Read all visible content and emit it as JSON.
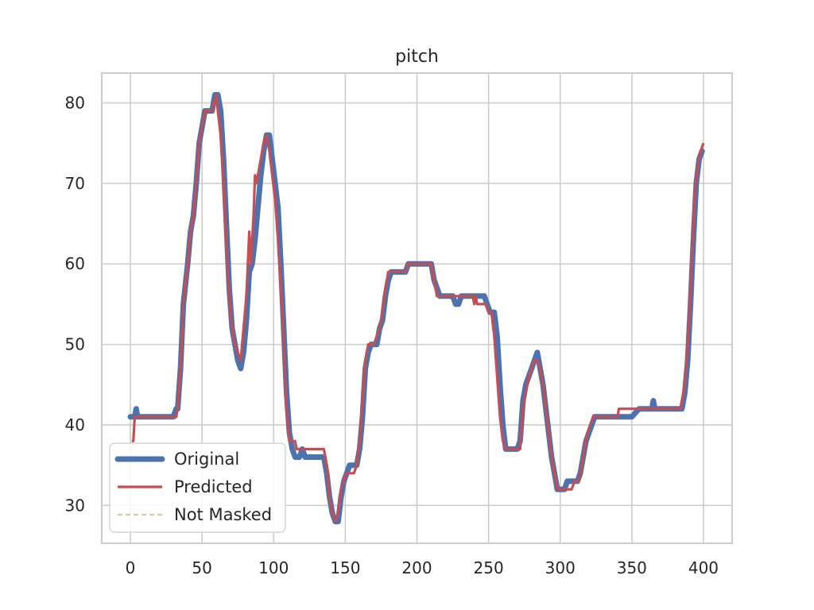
{
  "chart_data": {
    "type": "line",
    "title": "pitch",
    "xlabel": "",
    "ylabel": "",
    "xlim": [
      -20,
      420
    ],
    "ylim": [
      25.3,
      83.7
    ],
    "x_ticks": [
      0,
      50,
      100,
      150,
      200,
      250,
      300,
      350,
      400
    ],
    "y_ticks": [
      30,
      40,
      50,
      60,
      70,
      80
    ],
    "grid": true,
    "legend_position": "lower-left",
    "series": [
      {
        "name": "Original",
        "color": "#4c72b0",
        "style": "solid-thick",
        "points": [
          [
            0,
            41
          ],
          [
            3,
            41
          ],
          [
            4,
            42
          ],
          [
            5,
            41
          ],
          [
            30,
            41
          ],
          [
            32,
            42
          ],
          [
            33,
            42
          ],
          [
            35,
            47
          ],
          [
            37,
            55
          ],
          [
            40,
            60
          ],
          [
            42,
            64
          ],
          [
            44,
            66
          ],
          [
            46,
            70
          ],
          [
            48,
            75
          ],
          [
            50,
            77
          ],
          [
            52,
            79
          ],
          [
            55,
            79
          ],
          [
            57,
            79
          ],
          [
            59,
            81
          ],
          [
            61,
            81
          ],
          [
            63,
            79
          ],
          [
            65,
            73
          ],
          [
            67,
            65
          ],
          [
            69,
            57
          ],
          [
            71,
            52
          ],
          [
            73,
            50
          ],
          [
            75,
            48
          ],
          [
            77,
            47
          ],
          [
            79,
            49
          ],
          [
            81,
            53
          ],
          [
            83,
            59
          ],
          [
            85,
            60
          ],
          [
            87,
            63
          ],
          [
            89,
            67
          ],
          [
            91,
            71
          ],
          [
            93,
            74
          ],
          [
            95,
            76
          ],
          [
            97,
            76
          ],
          [
            99,
            73
          ],
          [
            101,
            70
          ],
          [
            103,
            67
          ],
          [
            105,
            60
          ],
          [
            107,
            52
          ],
          [
            109,
            44
          ],
          [
            111,
            39
          ],
          [
            113,
            37
          ],
          [
            115,
            36
          ],
          [
            118,
            36
          ],
          [
            120,
            37
          ],
          [
            122,
            36
          ],
          [
            135,
            36
          ],
          [
            137,
            34
          ],
          [
            139,
            31
          ],
          [
            141,
            29
          ],
          [
            143,
            28
          ],
          [
            145,
            28
          ],
          [
            147,
            31
          ],
          [
            149,
            33
          ],
          [
            151,
            34
          ],
          [
            153,
            35
          ],
          [
            158,
            35
          ],
          [
            160,
            37
          ],
          [
            162,
            41
          ],
          [
            164,
            47
          ],
          [
            166,
            49
          ],
          [
            168,
            50
          ],
          [
            172,
            50
          ],
          [
            174,
            52
          ],
          [
            176,
            53
          ],
          [
            178,
            56
          ],
          [
            180,
            58
          ],
          [
            182,
            59
          ],
          [
            192,
            59
          ],
          [
            194,
            60
          ],
          [
            210,
            60
          ],
          [
            212,
            58
          ],
          [
            214,
            57
          ],
          [
            216,
            56
          ],
          [
            225,
            56
          ],
          [
            227,
            55
          ],
          [
            229,
            55
          ],
          [
            231,
            56
          ],
          [
            247,
            56
          ],
          [
            249,
            55
          ],
          [
            251,
            54
          ],
          [
            254,
            54
          ],
          [
            256,
            51
          ],
          [
            258,
            45
          ],
          [
            260,
            40
          ],
          [
            262,
            37
          ],
          [
            264,
            37
          ],
          [
            270,
            37
          ],
          [
            272,
            38
          ],
          [
            274,
            43
          ],
          [
            276,
            45
          ],
          [
            278,
            46
          ],
          [
            280,
            47
          ],
          [
            282,
            48
          ],
          [
            284,
            49
          ],
          [
            286,
            47
          ],
          [
            288,
            45
          ],
          [
            290,
            42
          ],
          [
            292,
            39
          ],
          [
            294,
            36
          ],
          [
            296,
            34
          ],
          [
            298,
            32
          ],
          [
            301,
            32
          ],
          [
            303,
            32
          ],
          [
            305,
            33
          ],
          [
            312,
            33
          ],
          [
            314,
            34
          ],
          [
            316,
            36
          ],
          [
            318,
            38
          ],
          [
            320,
            39
          ],
          [
            322,
            40
          ],
          [
            324,
            41
          ],
          [
            340,
            41
          ],
          [
            342,
            41
          ],
          [
            345,
            41
          ],
          [
            350,
            41
          ],
          [
            355,
            42
          ],
          [
            364,
            42
          ],
          [
            365,
            43
          ],
          [
            366,
            42
          ],
          [
            385,
            42
          ],
          [
            387,
            44
          ],
          [
            389,
            48
          ],
          [
            391,
            55
          ],
          [
            393,
            63
          ],
          [
            395,
            70
          ],
          [
            397,
            73
          ],
          [
            399,
            74
          ]
        ]
      },
      {
        "name": "Predicted",
        "color": "#c44e52",
        "style": "solid",
        "points": [
          [
            1,
            38
          ],
          [
            2,
            38
          ],
          [
            3,
            41
          ],
          [
            32,
            41
          ],
          [
            33,
            42
          ],
          [
            35,
            47
          ],
          [
            37,
            55
          ],
          [
            40,
            60
          ],
          [
            42,
            64
          ],
          [
            44,
            66
          ],
          [
            46,
            70
          ],
          [
            48,
            75
          ],
          [
            50,
            77
          ],
          [
            52,
            79
          ],
          [
            55,
            79
          ],
          [
            57,
            79
          ],
          [
            58,
            80
          ],
          [
            59,
            80
          ],
          [
            60,
            81
          ],
          [
            61,
            79
          ],
          [
            63,
            76
          ],
          [
            65,
            70
          ],
          [
            67,
            62
          ],
          [
            69,
            56
          ],
          [
            71,
            52
          ],
          [
            73,
            50
          ],
          [
            75,
            49
          ],
          [
            77,
            48
          ],
          [
            79,
            52
          ],
          [
            81,
            56
          ],
          [
            82,
            60
          ],
          [
            83,
            64
          ],
          [
            84,
            60
          ],
          [
            85,
            63
          ],
          [
            86,
            66
          ],
          [
            87,
            71
          ],
          [
            88,
            70
          ],
          [
            89,
            71
          ],
          [
            91,
            73
          ],
          [
            93,
            75
          ],
          [
            95,
            76
          ],
          [
            97,
            74
          ],
          [
            99,
            71
          ],
          [
            101,
            68
          ],
          [
            103,
            63
          ],
          [
            105,
            57
          ],
          [
            107,
            50
          ],
          [
            109,
            42
          ],
          [
            111,
            38
          ],
          [
            113,
            38
          ],
          [
            115,
            38
          ],
          [
            116,
            37
          ],
          [
            118,
            37
          ],
          [
            135,
            37
          ],
          [
            137,
            35
          ],
          [
            139,
            31
          ],
          [
            141,
            29
          ],
          [
            143,
            28
          ],
          [
            145,
            29
          ],
          [
            147,
            32
          ],
          [
            149,
            33
          ],
          [
            151,
            34
          ],
          [
            156,
            34
          ],
          [
            158,
            35
          ],
          [
            160,
            38
          ],
          [
            162,
            43
          ],
          [
            164,
            48
          ],
          [
            166,
            50
          ],
          [
            170,
            50
          ],
          [
            174,
            52
          ],
          [
            176,
            54
          ],
          [
            178,
            57
          ],
          [
            180,
            59
          ],
          [
            192,
            59
          ],
          [
            194,
            60
          ],
          [
            210,
            60
          ],
          [
            212,
            58
          ],
          [
            214,
            56
          ],
          [
            239,
            56
          ],
          [
            240,
            55
          ],
          [
            241,
            56
          ],
          [
            242,
            55
          ],
          [
            248,
            55
          ],
          [
            250,
            54
          ],
          [
            252,
            54
          ],
          [
            254,
            51
          ],
          [
            256,
            46
          ],
          [
            258,
            41
          ],
          [
            260,
            38
          ],
          [
            262,
            37
          ],
          [
            272,
            37
          ],
          [
            274,
            42
          ],
          [
            276,
            44
          ],
          [
            278,
            46
          ],
          [
            280,
            47
          ],
          [
            282,
            48
          ],
          [
            284,
            48
          ],
          [
            286,
            47
          ],
          [
            288,
            45
          ],
          [
            290,
            42
          ],
          [
            292,
            39
          ],
          [
            294,
            36
          ],
          [
            296,
            34
          ],
          [
            298,
            32
          ],
          [
            308,
            32
          ],
          [
            310,
            33
          ],
          [
            313,
            33
          ],
          [
            315,
            35
          ],
          [
            317,
            37
          ],
          [
            319,
            39
          ],
          [
            321,
            40
          ],
          [
            323,
            41
          ],
          [
            340,
            41
          ],
          [
            341,
            42
          ],
          [
            342,
            42
          ],
          [
            384,
            42
          ],
          [
            386,
            44
          ],
          [
            388,
            47
          ],
          [
            390,
            53
          ],
          [
            392,
            61
          ],
          [
            394,
            69
          ],
          [
            396,
            72
          ],
          [
            398,
            74
          ],
          [
            400,
            75
          ]
        ]
      },
      {
        "name": "Not Masked",
        "color": "#ccb974",
        "style": "dashed",
        "points": []
      }
    ]
  }
}
